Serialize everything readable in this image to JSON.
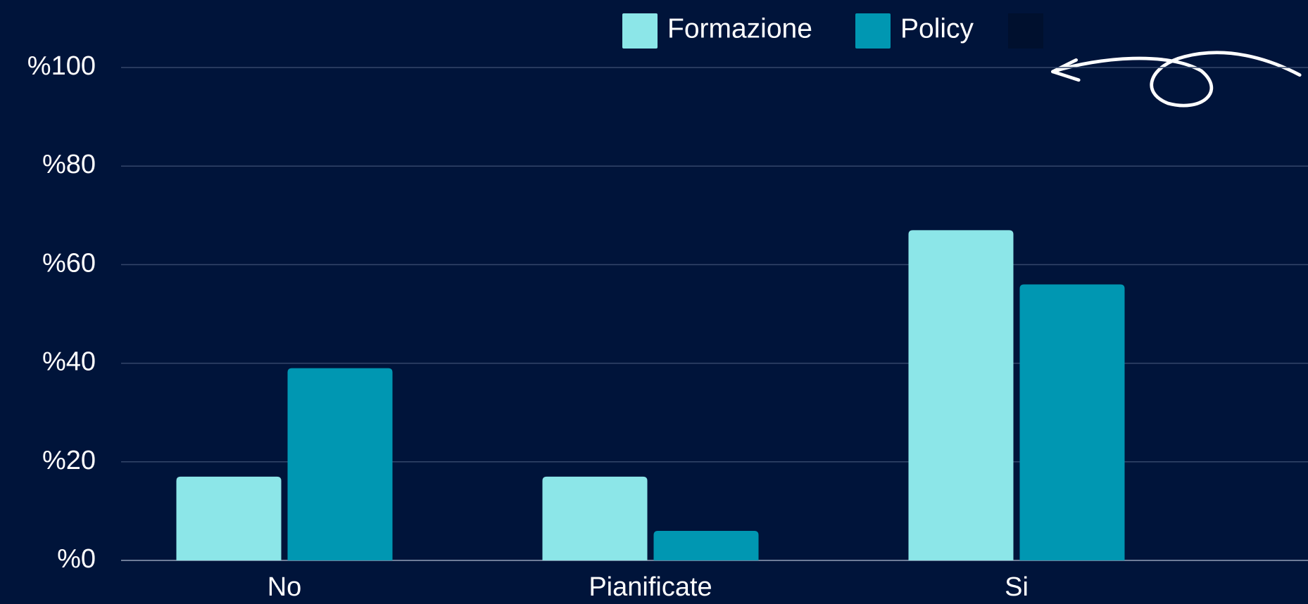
{
  "chart_data": {
    "type": "bar",
    "categories": [
      "No",
      "Pianificate",
      "Si"
    ],
    "series": [
      {
        "name": "Formazione",
        "color": "#8ce6e8",
        "values": [
          17,
          17,
          67
        ]
      },
      {
        "name": "Policy",
        "color": "#0097b2",
        "values": [
          39,
          6,
          56
        ]
      }
    ],
    "ylim": [
      0,
      100
    ],
    "yticks": [
      {
        "value": 0,
        "label": "%0"
      },
      {
        "value": 20,
        "label": "%20"
      },
      {
        "value": 40,
        "label": "%40"
      },
      {
        "value": 60,
        "label": "%60"
      },
      {
        "value": 80,
        "label": "%80"
      },
      {
        "value": 100,
        "label": "%100"
      }
    ],
    "grid": true
  }
}
